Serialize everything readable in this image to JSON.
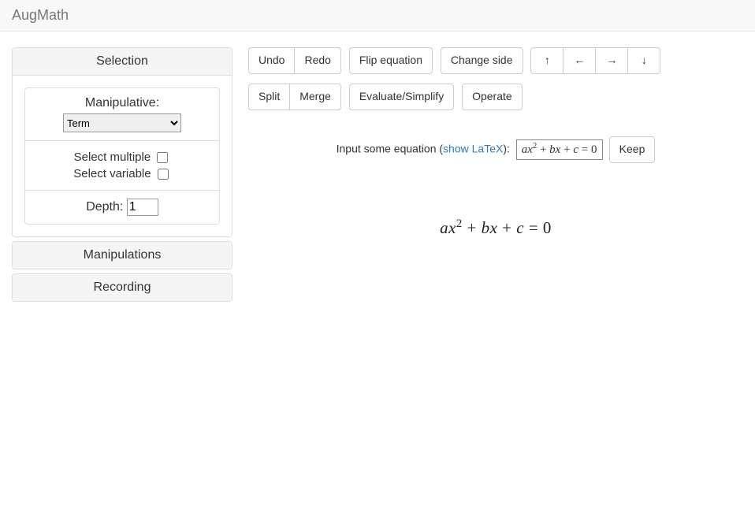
{
  "app": {
    "brand": "AugMath"
  },
  "sidebar": {
    "accordion": [
      {
        "title": "Selection"
      },
      {
        "title": "Manipulations"
      },
      {
        "title": "Recording"
      }
    ],
    "manipulative": {
      "label": "Manipulative:",
      "selected": "Term",
      "options": [
        "Term"
      ]
    },
    "select_multiple_label": "Select multiple",
    "select_multiple_checked": false,
    "select_variable_label": "Select variable",
    "select_variable_checked": false,
    "depth_label": "Depth:",
    "depth_value": 1
  },
  "toolbar": {
    "undo": "Undo",
    "redo": "Redo",
    "flip": "Flip equation",
    "change_side": "Change side",
    "split": "Split",
    "merge": "Merge",
    "eval": "Evaluate/Simplify",
    "operate": "Operate",
    "arrows": {
      "up": "↑",
      "left": "←",
      "right": "→",
      "down": "↓"
    }
  },
  "input_row": {
    "prefix": "Input some equation (",
    "link": "show LaTeX",
    "suffix": "):",
    "value_html": "ax<sup>2</sup> <span class=\"upright\">+</span> bx <span class=\"upright\">+</span> c <span class=\"upright\">= 0</span>",
    "keep": "Keep"
  },
  "equation": {
    "display_html": "ax<sup>2</sup> <span class=\"upright\">+</span> bx <span class=\"upright\">+</span> c <span class=\"upright\">= 0</span>"
  },
  "colors": {
    "navbar_bg": "#f8f8f8",
    "navbar_border": "#e7e7e7",
    "panel_border": "#dddddd",
    "panel_header_bg": "#f5f5f5",
    "link": "#337ab7",
    "text": "#333333"
  }
}
